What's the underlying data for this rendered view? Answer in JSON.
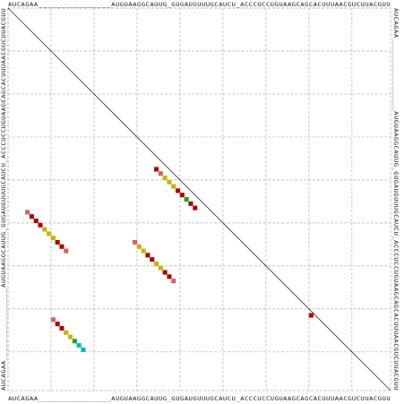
{
  "sequence": {
    "top": "AUCAGAA_________________AUGUAAGGCAUUG_GUGAUGUUUGCAUCU_ACCCUCCUGUAAGCAGCACUUUAACGUCUUACGUU",
    "bottom": "AUCAGAA_________________AUGUAAGGCAUUG_GUGAUGUUUGCAUCU_ACCCUCCUGUAAGCAGCACUUUAACGUCUUACGUU",
    "left": "AUCAGAA_________________AUGUAAGGCAUUG_GUGAUGUUUGCAUCU_ACCCUCCUGUAAGCAGCACUUUAACGUCUUACGUU",
    "right": "AUCAGAA_________________AUGUAAGGCAUUG_GUGAUGUUUGCAUCU_ACCCUCCUGUAAGCAGCACUUUAACGUCUUACGUU"
  },
  "colors": {
    "grid": "#b0b0b0",
    "diagonal": "#333333",
    "dark_red": "#b00000",
    "pink": "#d86060",
    "olive": "#c8b400",
    "green": "#00aa30",
    "cyan": "#00b8c0"
  },
  "helices": [
    {
      "name": "helix-1",
      "pairs": [
        {
          "i": 10,
          "j": 72,
          "color": "pink"
        },
        {
          "i": 11,
          "j": 73,
          "color": "dark_red"
        },
        {
          "i": 12,
          "j": 74,
          "color": "dark_red"
        },
        {
          "i": 13,
          "j": 75,
          "color": "olive"
        },
        {
          "i": 14,
          "j": 76,
          "color": "olive"
        },
        {
          "i": 15,
          "j": 77,
          "color": "green"
        },
        {
          "i": 16,
          "j": 78,
          "color": "cyan"
        },
        {
          "i": 17,
          "j": 79,
          "color": "cyan"
        }
      ]
    },
    {
      "name": "helix-2",
      "pairs": [
        {
          "i": 29,
          "j": 54,
          "color": "pink"
        },
        {
          "i": 30,
          "j": 55,
          "color": "olive"
        },
        {
          "i": 31,
          "j": 56,
          "color": "olive"
        },
        {
          "i": 32,
          "j": 57,
          "color": "dark_red"
        },
        {
          "i": 33,
          "j": 58,
          "color": "dark_red"
        },
        {
          "i": 34,
          "j": 59,
          "color": "olive"
        },
        {
          "i": 35,
          "j": 60,
          "color": "olive"
        },
        {
          "i": 36,
          "j": 61,
          "color": "dark_red"
        },
        {
          "i": 37,
          "j": 62,
          "color": "dark_red"
        },
        {
          "i": 38,
          "j": 63,
          "color": "pink"
        }
      ]
    },
    {
      "name": "helix-3",
      "pairs": [
        {
          "i": 34,
          "j": 37,
          "color": "dark_red"
        },
        {
          "i": 35,
          "j": 38,
          "color": "pink"
        },
        {
          "i": 36,
          "j": 39,
          "color": "olive"
        },
        {
          "i": 37,
          "j": 40,
          "color": "olive"
        },
        {
          "i": 38,
          "j": 41,
          "color": "olive"
        },
        {
          "i": 39,
          "j": 42,
          "color": "dark_red"
        },
        {
          "i": 40,
          "j": 43,
          "color": "dark_red"
        },
        {
          "i": 41,
          "j": 44,
          "color": "green"
        },
        {
          "i": 42,
          "j": 45,
          "color": "dark_red"
        },
        {
          "i": 43,
          "j": 46,
          "color": "dark_red"
        }
      ]
    },
    {
      "name": "helix-4",
      "pairs": [
        {
          "i": 4,
          "j": 47,
          "color": "pink"
        },
        {
          "i": 5,
          "j": 48,
          "color": "dark_red"
        },
        {
          "i": 6,
          "j": 49,
          "color": "dark_red"
        },
        {
          "i": 7,
          "j": 50,
          "color": "dark_red"
        },
        {
          "i": 8,
          "j": 51,
          "color": "olive"
        },
        {
          "i": 9,
          "j": 52,
          "color": "olive"
        },
        {
          "i": 10,
          "j": 53,
          "color": "olive"
        },
        {
          "i": 11,
          "j": 54,
          "color": "dark_red"
        },
        {
          "i": 12,
          "j": 55,
          "color": "dark_red"
        },
        {
          "i": 13,
          "j": 56,
          "color": "pink"
        }
      ]
    },
    {
      "name": "helix-5",
      "pairs": [
        {
          "i": 70,
          "j": 71,
          "color": "dark_red"
        }
      ]
    }
  ]
}
